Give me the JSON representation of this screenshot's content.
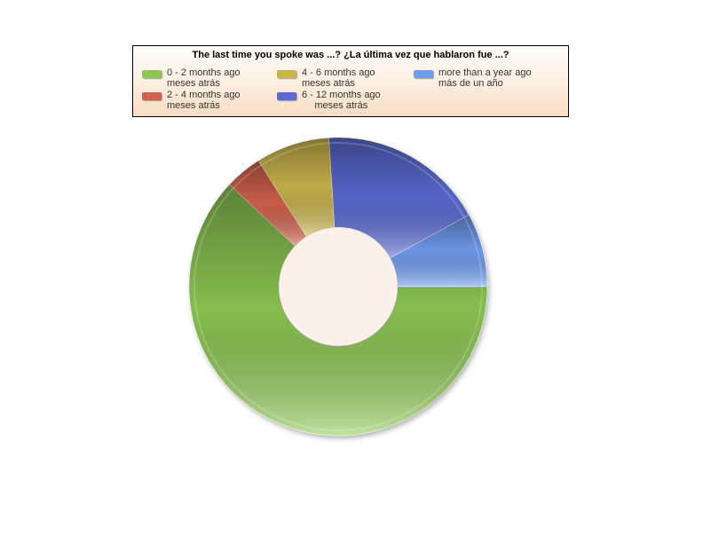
{
  "chart_data": {
    "type": "pie",
    "style": "donut",
    "title": "The last time you spoke was ...?   ¿La última vez que hablaron fue ...?",
    "legend_position": "top",
    "slices": [
      {
        "label": [
          "more than a year ago",
          "más de un año"
        ],
        "value": 8,
        "color": "#6f9cf0"
      },
      {
        "label": [
          "6 - 12 months ago",
          "meses atrás"
        ],
        "value": 18,
        "color": "#5a6ad2"
      },
      {
        "label": [
          "4 - 6 months ago",
          "meses atrás"
        ],
        "value": 8,
        "color": "#c9b44c"
      },
      {
        "label": [
          "2 - 4 months ago",
          "meses atrás"
        ],
        "value": 4,
        "color": "#d2624e"
      },
      {
        "label": [
          "0 - 2 months ago",
          "meses atrás"
        ],
        "value": 62,
        "color": "#8dc753"
      }
    ]
  }
}
